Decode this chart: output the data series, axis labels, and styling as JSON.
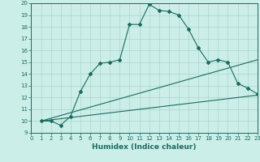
{
  "xlabel": "Humidex (Indice chaleur)",
  "bg_color": "#cceee8",
  "line_color": "#1a6b60",
  "xlim": [
    0,
    23
  ],
  "ylim": [
    9,
    20
  ],
  "xticks": [
    0,
    1,
    2,
    3,
    4,
    5,
    6,
    7,
    8,
    9,
    10,
    11,
    12,
    13,
    14,
    15,
    16,
    17,
    18,
    19,
    20,
    21,
    22,
    23
  ],
  "yticks": [
    9,
    10,
    11,
    12,
    13,
    14,
    15,
    16,
    17,
    18,
    19,
    20
  ],
  "main_x": [
    1,
    2,
    3,
    4,
    5,
    6,
    7,
    8,
    9,
    10,
    11,
    12,
    13,
    14,
    15,
    16,
    17,
    18,
    19,
    20,
    21,
    22,
    23
  ],
  "main_y": [
    10.0,
    10.0,
    9.65,
    10.4,
    12.5,
    14.0,
    14.9,
    15.0,
    15.2,
    18.2,
    18.2,
    19.9,
    19.4,
    19.3,
    19.0,
    17.8,
    16.2,
    15.0,
    15.2,
    15.0,
    13.2,
    12.8,
    12.3
  ],
  "ref_line1_x": [
    1,
    23
  ],
  "ref_line1_y": [
    10.0,
    12.2
  ],
  "ref_line2_x": [
    1,
    23
  ],
  "ref_line2_y": [
    10.0,
    15.2
  ],
  "grid_color": "#aad4ce",
  "xlabel_fontsize": 6.5,
  "tick_fontsize": 5.0,
  "linewidth": 0.8,
  "marker_size": 2.0
}
